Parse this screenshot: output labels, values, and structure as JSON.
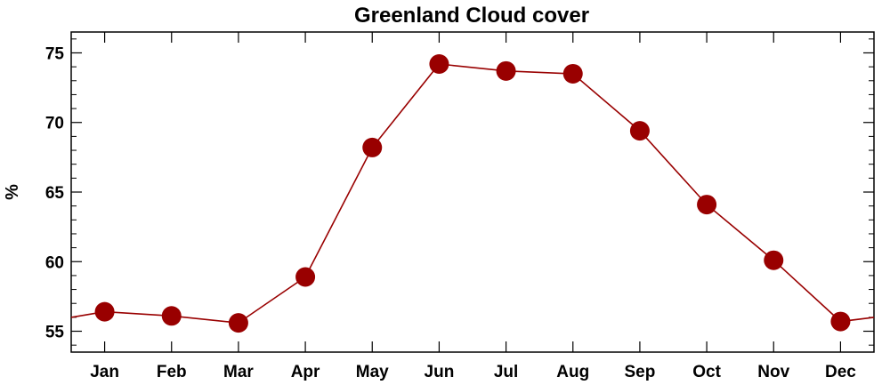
{
  "chart_data": {
    "type": "line",
    "title": "Greenland Cloud cover",
    "xlabel": "",
    "ylabel": "%",
    "categories": [
      "Jan",
      "Feb",
      "Mar",
      "Apr",
      "May",
      "Jun",
      "Jul",
      "Aug",
      "Sep",
      "Oct",
      "Nov",
      "Dec"
    ],
    "series": [
      {
        "values": [
          56.4,
          56.1,
          55.6,
          58.9,
          68.2,
          74.2,
          73.7,
          73.5,
          69.4,
          64.1,
          60.1,
          55.7
        ]
      }
    ],
    "wrap_values": {
      "left": 56.0,
      "right": 56.0
    },
    "ylim": [
      53.5,
      76.5
    ],
    "yticks": [
      55,
      60,
      65,
      70,
      75
    ],
    "grid": false,
    "colors": {
      "line": "#990000",
      "marker": "#990000",
      "axis": "#000000"
    }
  }
}
